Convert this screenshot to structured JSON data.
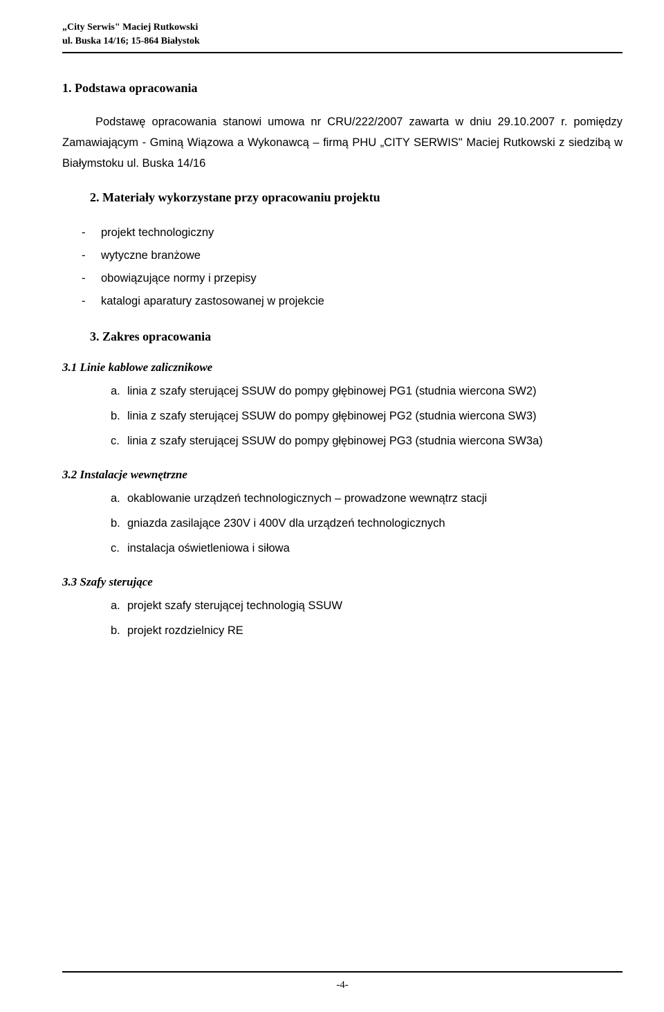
{
  "header": {
    "line1": "„City Serwis\" Maciej Rutkowski",
    "line2": "ul. Buska 14/16; 15-864 Białystok"
  },
  "section1": {
    "title": "1. Podstawa opracowania",
    "para1": "Podstawę opracowania stanowi umowa nr CRU/222/2007 zawarta w dniu 29.10.2007 r. pomiędzy Zamawiającym - Gminą Wiązowa a Wykonawcą – firmą PHU „CITY SERWIS\" Maciej Rutkowski z siedzibą w Białymstoku ul. Buska 14/16"
  },
  "section2": {
    "title": "2. Materiały wykorzystane przy opracowaniu projektu",
    "items": [
      "projekt technologiczny",
      "wytyczne branżowe",
      "obowiązujące normy i przepisy",
      "katalogi aparatury zastosowanej w projekcie"
    ]
  },
  "section3": {
    "title": "3. Zakres opracowania",
    "sub1": {
      "title": "3.1 Linie kablowe zalicznikowe",
      "items": [
        {
          "letter": "a.",
          "text": "linia z szafy sterującej SSUW do pompy głębinowej PG1 (studnia wiercona SW2)"
        },
        {
          "letter": "b.",
          "text": "linia z szafy sterującej SSUW do pompy głębinowej PG2 (studnia wiercona SW3)"
        },
        {
          "letter": "c.",
          "text": "linia z szafy sterującej SSUW do pompy głębinowej PG3 (studnia wiercona SW3a)"
        }
      ]
    },
    "sub2": {
      "title": "3.2 Instalacje wewnętrzne",
      "items": [
        {
          "letter": "a.",
          "text": "okablowanie urządzeń technologicznych – prowadzone wewnątrz stacji"
        },
        {
          "letter": "b.",
          "text": "gniazda zasilające 230V i 400V dla urządzeń technologicznych"
        },
        {
          "letter": "c.",
          "text": "instalacja oświetleniowa i siłowa"
        }
      ]
    },
    "sub3": {
      "title": "3.3 Szafy sterujące",
      "items": [
        {
          "letter": "a.",
          "text": "projekt szafy sterującej technologią SSUW"
        },
        {
          "letter": "b.",
          "text": "projekt rozdzielnicy RE"
        }
      ]
    }
  },
  "footer": {
    "pageNumber": "-4-"
  }
}
